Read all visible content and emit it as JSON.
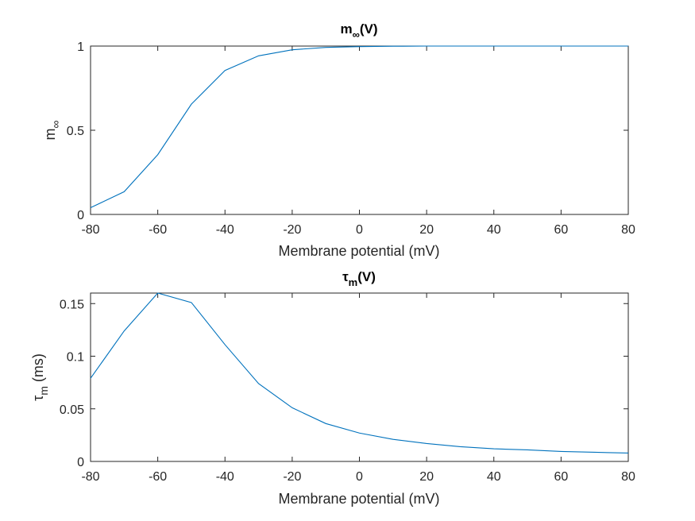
{
  "chart_data": [
    {
      "type": "line",
      "title_main": "m",
      "title_sub": "∞",
      "title_tail": "(V)",
      "xlabel": "Membrane potential (mV)",
      "ylabel_main": "m",
      "ylabel_sub": "∞",
      "ylabel_tail": "",
      "xlim": [
        -80,
        80
      ],
      "ylim": [
        0,
        1
      ],
      "xticks": [
        "-80",
        "-60",
        "-40",
        "-20",
        "0",
        "20",
        "40",
        "60",
        "80"
      ],
      "yticks": [
        "0",
        "0.5",
        "1"
      ],
      "ytick_values": [
        0,
        0.5,
        1
      ],
      "grid": false,
      "line_color": "#0072BD",
      "series": [
        {
          "x": [
            -80,
            -70,
            -60,
            -50,
            -40,
            -30,
            -20,
            -10,
            0,
            10,
            20,
            30,
            40,
            50,
            60,
            70,
            80
          ],
          "y": [
            0.04,
            0.135,
            0.355,
            0.655,
            0.855,
            0.942,
            0.978,
            0.992,
            0.997,
            0.999,
            1,
            1,
            1,
            1,
            1,
            1,
            1
          ]
        }
      ]
    },
    {
      "type": "line",
      "title_main": "τ",
      "title_sub": "m",
      "title_tail": "(V)",
      "xlabel": "Membrane potential (mV)",
      "ylabel_main": "τ",
      "ylabel_sub": "m",
      "ylabel_tail": " (ms)",
      "xlim": [
        -80,
        80
      ],
      "ylim": [
        0,
        0.16
      ],
      "xticks": [
        "-80",
        "-60",
        "-40",
        "-20",
        "0",
        "20",
        "40",
        "60",
        "80"
      ],
      "yticks": [
        "0",
        "0.05",
        "0.1",
        "0.15"
      ],
      "ytick_values": [
        0,
        0.05,
        0.1,
        0.15
      ],
      "grid": false,
      "line_color": "#0072BD",
      "series": [
        {
          "x": [
            -80,
            -70,
            -60,
            -50,
            -40,
            -30,
            -20,
            -10,
            0,
            10,
            20,
            30,
            40,
            50,
            60,
            70,
            80
          ],
          "y": [
            0.079,
            0.124,
            0.16,
            0.151,
            0.111,
            0.074,
            0.051,
            0.036,
            0.027,
            0.021,
            0.017,
            0.014,
            0.012,
            0.011,
            0.0095,
            0.0087,
            0.008
          ]
        }
      ]
    }
  ]
}
